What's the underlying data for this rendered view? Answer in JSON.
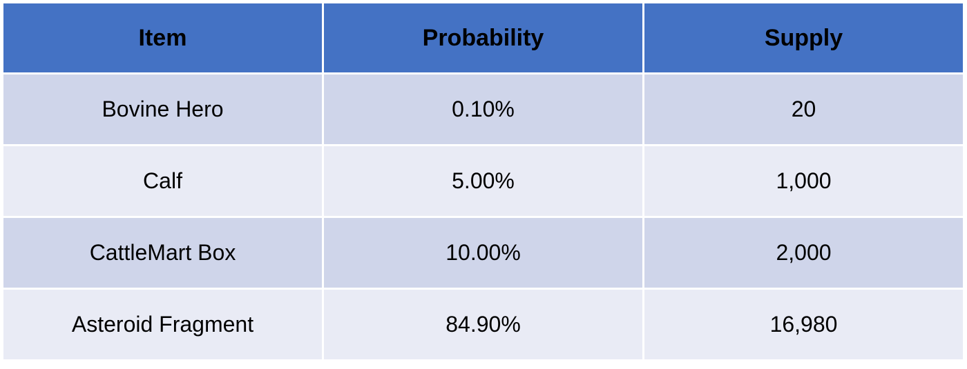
{
  "colors": {
    "header_bg": "#4472c4",
    "row_dark": "#cfd5ea",
    "row_light": "#e9ebf5",
    "border": "#ffffff"
  },
  "table": {
    "headers": [
      "Item",
      "Probability",
      "Supply"
    ],
    "rows": [
      {
        "item": "Bovine Hero",
        "probability": "0.10%",
        "supply": "20"
      },
      {
        "item": "Calf",
        "probability": "5.00%",
        "supply": "1,000"
      },
      {
        "item": "CattleMart Box",
        "probability": "10.00%",
        "supply": "2,000"
      },
      {
        "item": "Asteroid Fragment",
        "probability": "84.90%",
        "supply": "16,980"
      }
    ]
  }
}
